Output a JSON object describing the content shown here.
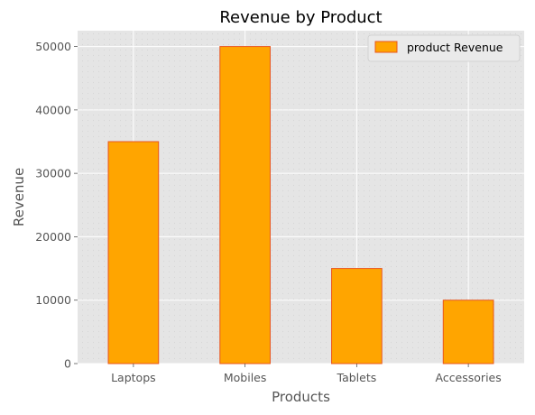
{
  "chart_data": {
    "type": "bar",
    "title": "Revenue by Product",
    "xlabel": "Products",
    "ylabel": "Revenue",
    "categories": [
      "Laptops",
      "Mobiles",
      "Tablets",
      "Accessories"
    ],
    "series": [
      {
        "name": "product Revenue",
        "values": [
          35000,
          50000,
          15000,
          10000
        ]
      }
    ],
    "ylim": [
      0,
      52500
    ],
    "yticks": [
      0,
      10000,
      20000,
      30000,
      40000,
      50000
    ],
    "grid": true,
    "legend_position": "top-right",
    "colors": {
      "bar_fill": "#FFA500",
      "bar_edge": "#E8561E",
      "plot_background": "#E5E5E5",
      "grid": "#FFFFFF"
    }
  }
}
